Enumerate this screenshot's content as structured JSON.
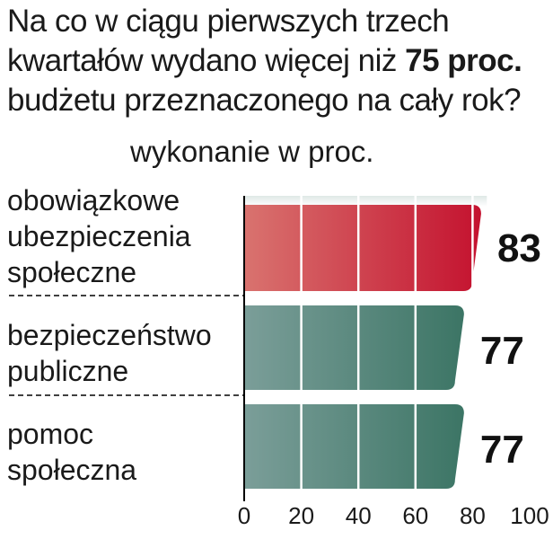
{
  "header": {
    "title_part1": "Na co w ciągu pierwszych trzech kwartałów wydano więcej niż ",
    "title_bold": "75 proc.",
    "title_part2": " budżetu przeznaczonego na cały rok?",
    "subtitle": "wykonanie w proc."
  },
  "colors": {
    "highlight_start": "#d9736f",
    "highlight_end": "#c4122f",
    "normal_start": "#7b9e99",
    "normal_end": "#3c7565",
    "plot_bg_top": "#dfe8e6",
    "divider": "#000000"
  },
  "chart_data": {
    "type": "bar",
    "orientation": "horizontal",
    "title": "Na co w ciągu pierwszych trzech kwartałów wydano więcej niż 75 proc. budżetu przeznaczonego na cały rok?",
    "xlabel": "wykonanie w proc.",
    "categories": [
      "obowiązkowe\nubezpieczenia\nspołeczne",
      "bezpieczeństwo\npubliczne",
      "pomoc\nspołeczna"
    ],
    "values": [
      83,
      77,
      77
    ],
    "value_labels": [
      "83",
      "77",
      "77"
    ],
    "highlight": [
      true,
      false,
      false
    ],
    "xlim": [
      0,
      100
    ],
    "xticks": [
      0,
      20,
      40,
      60,
      80,
      100
    ],
    "xtick_labels": [
      "0",
      "20",
      "40",
      "60",
      "80",
      "100"
    ],
    "grid": true
  }
}
